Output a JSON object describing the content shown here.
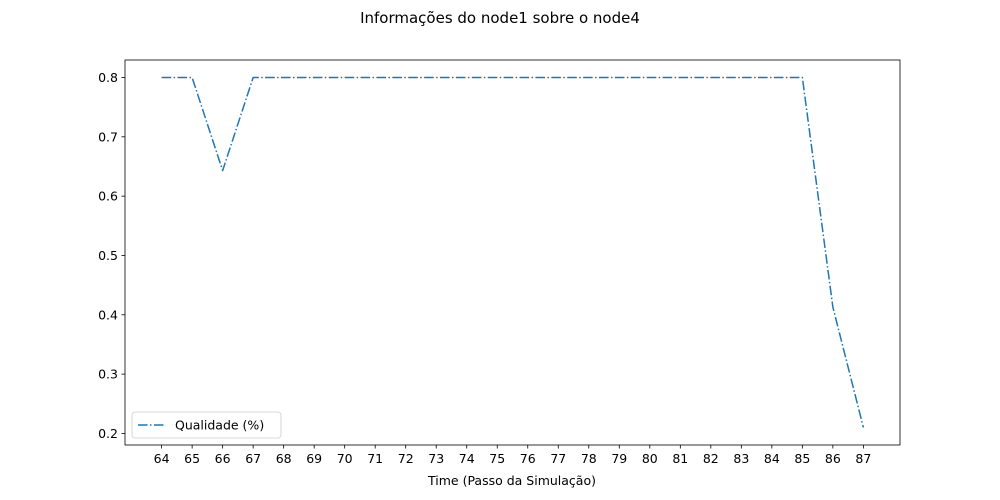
{
  "chart_data": {
    "type": "line",
    "title": "Informações do node1 sobre o node4",
    "xlabel": "Time (Passo da Simulação)",
    "ylabel": "",
    "x": [
      64,
      65,
      66,
      67,
      68,
      69,
      70,
      71,
      72,
      73,
      74,
      75,
      76,
      77,
      78,
      79,
      80,
      81,
      82,
      83,
      84,
      85,
      86,
      87
    ],
    "series": [
      {
        "name": "Qualidade (%)",
        "color": "#1f77b4",
        "line_style": "dash-dot",
        "values": [
          0.8,
          0.8,
          0.643,
          0.8,
          0.8,
          0.8,
          0.8,
          0.8,
          0.8,
          0.8,
          0.8,
          0.8,
          0.8,
          0.8,
          0.8,
          0.8,
          0.8,
          0.8,
          0.8,
          0.8,
          0.8,
          0.8,
          0.413,
          0.21
        ]
      }
    ],
    "xticks": [
      "64",
      "65",
      "66",
      "67",
      "68",
      "69",
      "70",
      "71",
      "72",
      "73",
      "74",
      "75",
      "76",
      "77",
      "78",
      "79",
      "80",
      "81",
      "82",
      "83",
      "84",
      "85",
      "86",
      "87"
    ],
    "yticks": [
      "0.2",
      "0.3",
      "0.4",
      "0.5",
      "0.6",
      "0.7",
      "0.8"
    ],
    "ytick_values": [
      0.2,
      0.3,
      0.4,
      0.5,
      0.6,
      0.7,
      0.8
    ],
    "xlim": [
      62.8,
      88.2
    ],
    "ylim": [
      0.1805,
      0.8295
    ],
    "grid": false,
    "legend_position": "lower-left"
  }
}
